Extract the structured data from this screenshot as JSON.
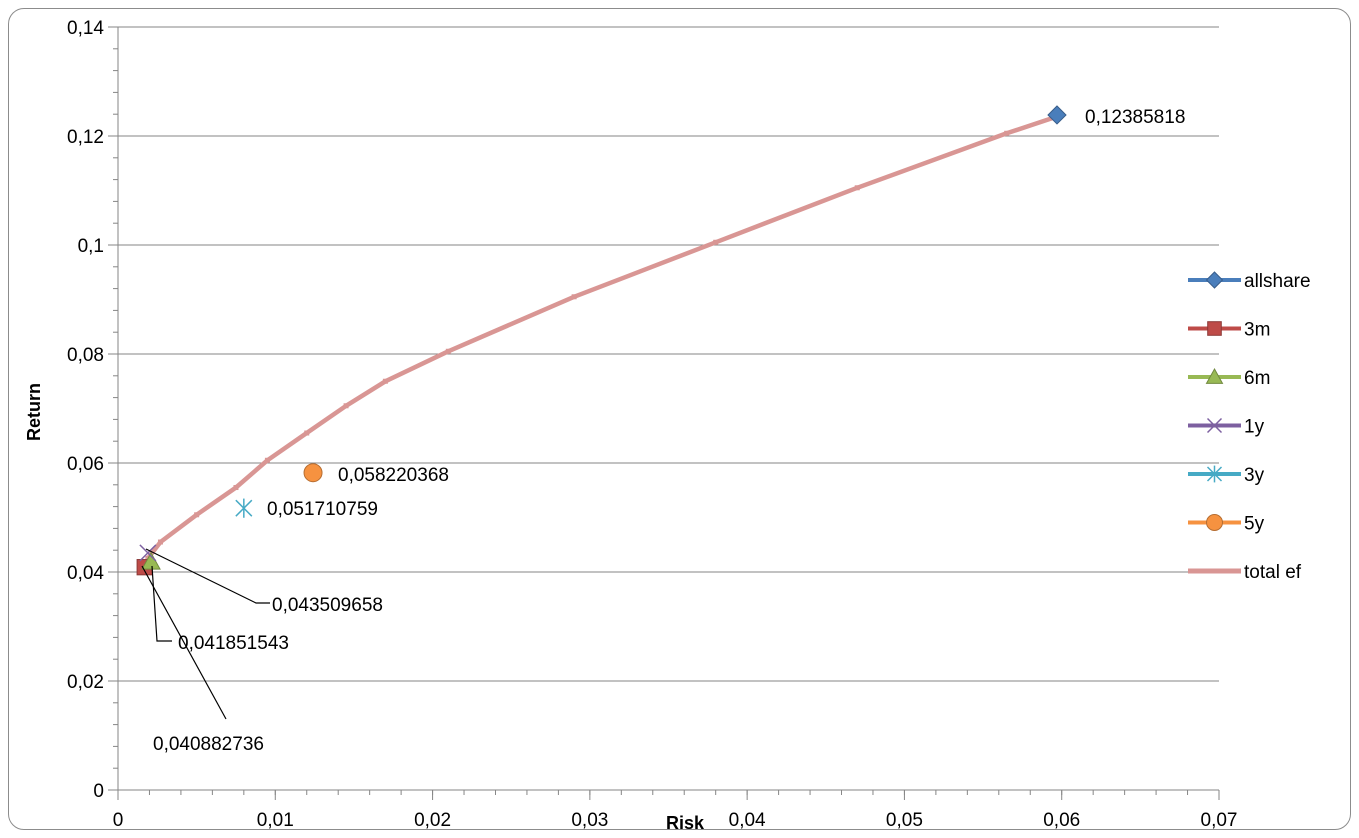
{
  "chart_data": {
    "type": "scatter",
    "xlabel": "Risk",
    "ylabel": "Return",
    "xlim": [
      0,
      0.07
    ],
    "ylim": [
      0,
      0.14
    ],
    "x_ticks": [
      "0",
      "0,01",
      "0,02",
      "0,03",
      "0,04",
      "0,05",
      "0,06",
      "0,07"
    ],
    "y_ticks": [
      "0",
      "0,02",
      "0,04",
      "0,06",
      "0,08",
      "0,1",
      "0,12",
      "0,14"
    ],
    "grid": "horizontal",
    "legend_position": "right",
    "series": [
      {
        "name": "allshare",
        "color": "#4a7ebb",
        "marker": "diamond",
        "points": [
          [
            0.0597,
            0.12385818
          ]
        ],
        "label": "0,12385818"
      },
      {
        "name": "3m",
        "color": "#be4b48",
        "marker": "square",
        "points": [
          [
            0.0017,
            0.040882736
          ]
        ],
        "label": "0,040882736"
      },
      {
        "name": "6m",
        "color": "#98b954",
        "marker": "triangle",
        "points": [
          [
            0.0021,
            0.041851543
          ]
        ],
        "label": "0,041851543"
      },
      {
        "name": "1y",
        "color": "#7d60a0",
        "marker": "x",
        "points": [
          [
            0.0019,
            0.043509658
          ]
        ],
        "label": "0,043509658"
      },
      {
        "name": "3y",
        "color": "#46aac5",
        "marker": "star",
        "points": [
          [
            0.008,
            0.051710759
          ]
        ],
        "label": "0,051710759"
      },
      {
        "name": "5y",
        "color": "#f69240",
        "marker": "circle",
        "points": [
          [
            0.0124,
            0.058220368
          ]
        ],
        "label": "0,058220368"
      },
      {
        "name": "total ef",
        "color": "#d99694",
        "marker": "line",
        "points": [
          [
            0.0019,
            0.0425
          ],
          [
            0.0027,
            0.0455
          ],
          [
            0.005,
            0.0505
          ],
          [
            0.0075,
            0.0555
          ],
          [
            0.0095,
            0.0605
          ],
          [
            0.012,
            0.0655
          ],
          [
            0.0145,
            0.0705
          ],
          [
            0.017,
            0.075
          ],
          [
            0.021,
            0.0805
          ],
          [
            0.029,
            0.0905
          ],
          [
            0.038,
            0.1005
          ],
          [
            0.047,
            0.1105
          ],
          [
            0.0565,
            0.1205
          ],
          [
            0.06,
            0.12385818
          ]
        ]
      }
    ]
  }
}
